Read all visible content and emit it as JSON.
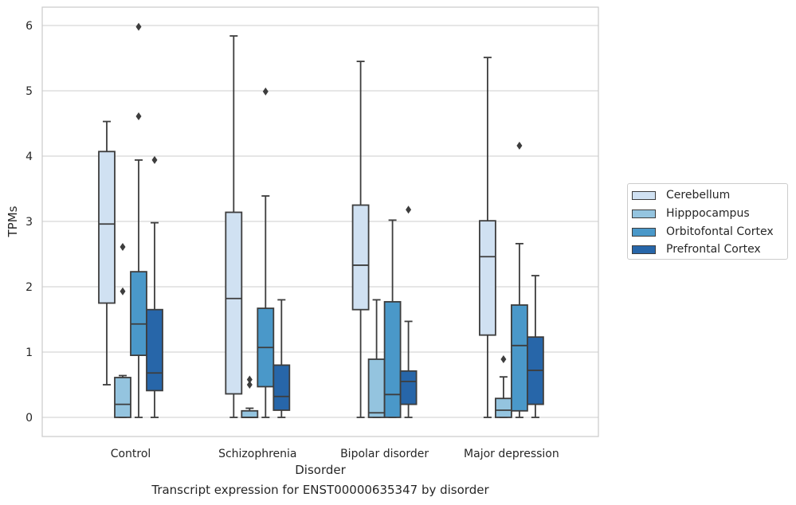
{
  "chart_data": {
    "type": "box",
    "title": "",
    "caption": "Transcript expression for ENST00000635347 by disorder",
    "xlabel": "Disorder",
    "ylabel": "TPMs",
    "ylim": [
      -0.3,
      6.3
    ],
    "yticks": [
      "0",
      "1",
      "2",
      "3",
      "4",
      "5",
      "6"
    ],
    "grid": "horizontal",
    "legend_placement": "right",
    "categories": [
      "Control",
      "Schizophrenia",
      "Bipolar disorder",
      "Major depression"
    ],
    "series": [
      {
        "name": "Cerebellum",
        "color": "#d0e1f2",
        "boxes": [
          {
            "low": 0.5,
            "q1": 1.75,
            "median": 2.96,
            "q3": 4.07,
            "high": 4.53,
            "outliers": []
          },
          {
            "low": 0.0,
            "q1": 0.36,
            "median": 1.82,
            "q3": 3.14,
            "high": 5.84,
            "outliers": []
          },
          {
            "low": 0.0,
            "q1": 1.65,
            "median": 2.33,
            "q3": 3.25,
            "high": 5.45,
            "outliers": []
          },
          {
            "low": 0.0,
            "q1": 1.26,
            "median": 2.46,
            "q3": 3.01,
            "high": 5.51,
            "outliers": []
          }
        ]
      },
      {
        "name": "Hipppocampus",
        "color": "#94c4df",
        "boxes": [
          {
            "low": 0.0,
            "q1": 0.0,
            "median": 0.2,
            "q3": 0.61,
            "high": 0.64,
            "outliers": [
              1.93,
              2.61
            ]
          },
          {
            "low": 0.0,
            "q1": 0.0,
            "median": 0.0,
            "q3": 0.1,
            "high": 0.14,
            "outliers": [
              0.5,
              0.58
            ]
          },
          {
            "low": 0.0,
            "q1": 0.0,
            "median": 0.07,
            "q3": 0.89,
            "high": 1.8,
            "outliers": []
          },
          {
            "low": 0.0,
            "q1": 0.0,
            "median": 0.11,
            "q3": 0.29,
            "high": 0.62,
            "outliers": [
              0.89
            ]
          }
        ]
      },
      {
        "name": "Orbitofontal Cortex",
        "color": "#4a98c9",
        "boxes": [
          {
            "low": 0.0,
            "q1": 0.95,
            "median": 1.43,
            "q3": 2.23,
            "high": 3.94,
            "outliers": [
              4.61,
              5.98
            ]
          },
          {
            "low": 0.0,
            "q1": 0.47,
            "median": 1.07,
            "q3": 1.67,
            "high": 3.39,
            "outliers": [
              4.99
            ]
          },
          {
            "low": 0.0,
            "q1": 0.0,
            "median": 0.35,
            "q3": 1.77,
            "high": 3.02,
            "outliers": []
          },
          {
            "low": 0.0,
            "q1": 0.1,
            "median": 1.1,
            "q3": 1.72,
            "high": 2.66,
            "outliers": [
              4.16
            ]
          }
        ]
      },
      {
        "name": "Prefrontal Cortex",
        "color": "#2766a9",
        "boxes": [
          {
            "low": 0.0,
            "q1": 0.41,
            "median": 0.68,
            "q3": 1.65,
            "high": 2.98,
            "outliers": [
              3.94
            ]
          },
          {
            "low": 0.0,
            "q1": 0.11,
            "median": 0.32,
            "q3": 0.8,
            "high": 1.8,
            "outliers": []
          },
          {
            "low": 0.0,
            "q1": 0.2,
            "median": 0.55,
            "q3": 0.71,
            "high": 1.47,
            "outliers": [
              3.18
            ]
          },
          {
            "low": 0.0,
            "q1": 0.2,
            "median": 0.72,
            "q3": 1.23,
            "high": 2.17,
            "outliers": []
          }
        ]
      }
    ]
  }
}
